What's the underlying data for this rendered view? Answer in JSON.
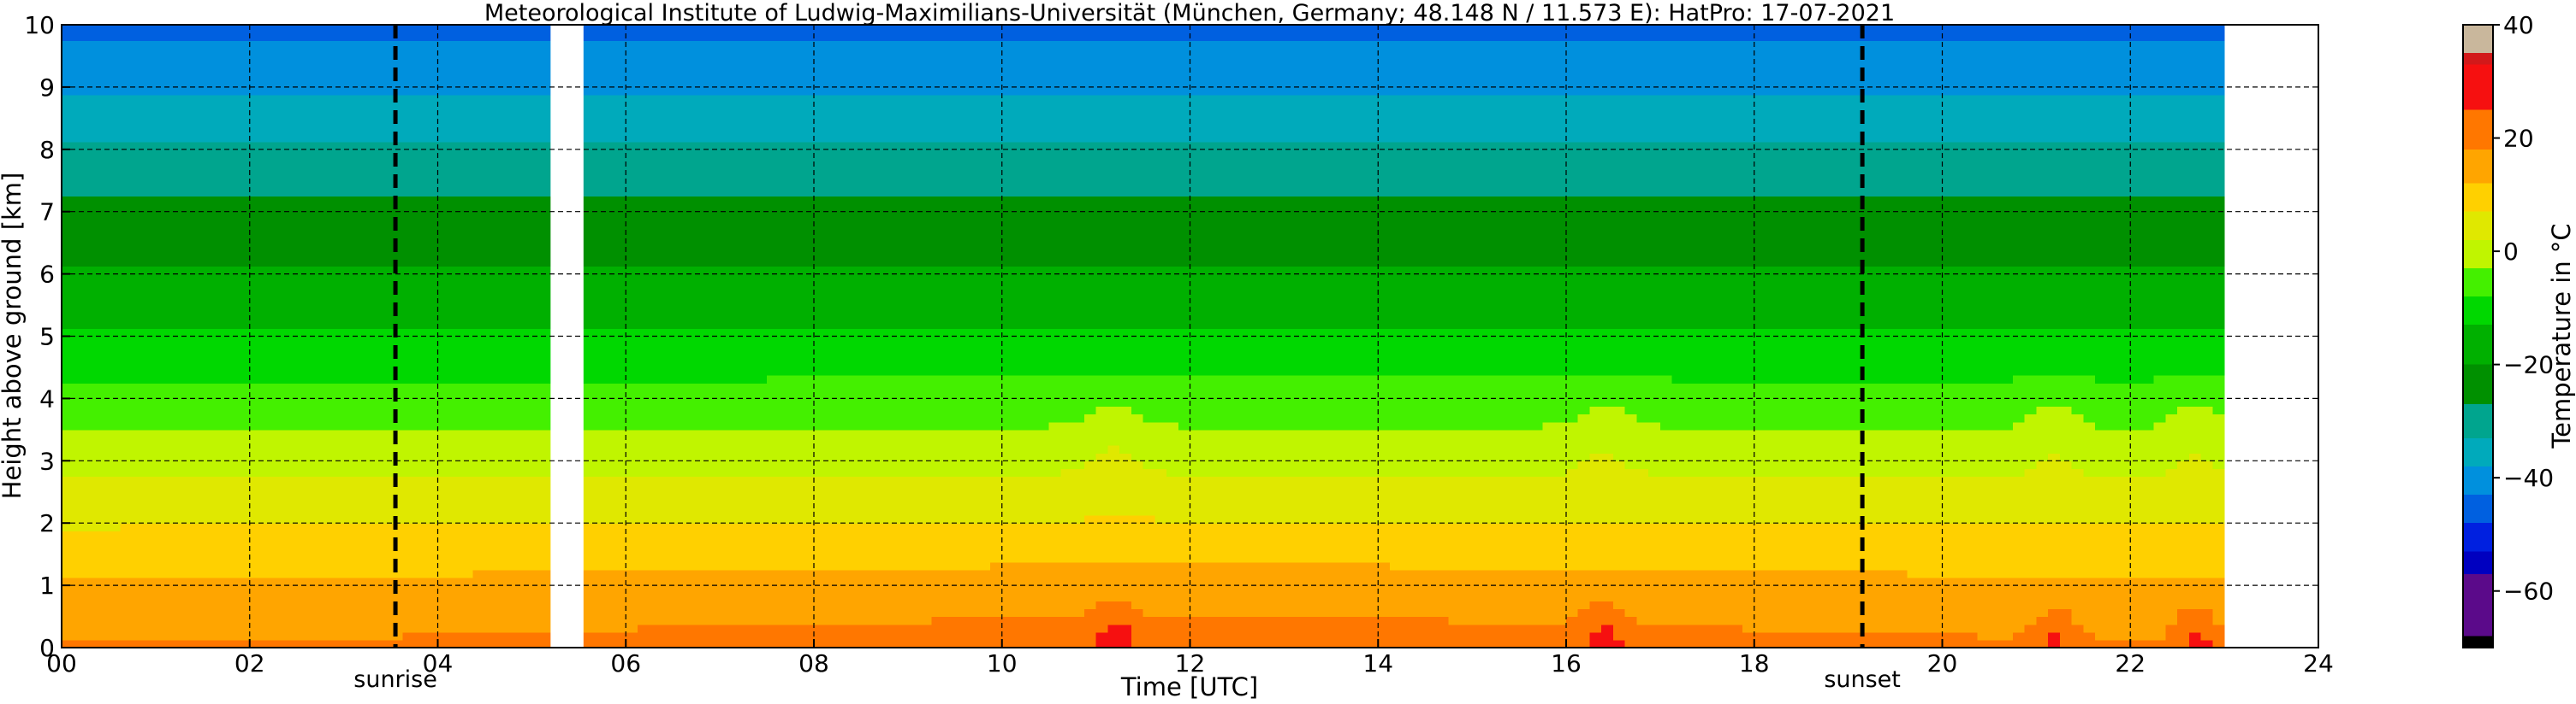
{
  "chart_data": {
    "type": "heatmap",
    "title": "Meteorological Institute of Ludwig-Maximilians-Universität (München, Germany; 48.148 N / 11.573 E):    HatPro: 17-07-2021",
    "xlabel": "Time [UTC]",
    "ylabel": "Height above ground [km]",
    "xlim": [
      0,
      24
    ],
    "ylim": [
      0,
      10
    ],
    "x_ticks": [
      "00",
      "02",
      "04",
      "06",
      "08",
      "10",
      "12",
      "14",
      "16",
      "18",
      "20",
      "22",
      "24"
    ],
    "y_ticks": [
      "0",
      "1",
      "2",
      "3",
      "4",
      "5",
      "6",
      "7",
      "8",
      "9",
      "10"
    ],
    "grid": true,
    "data_extent_hours": [
      0,
      23.0
    ],
    "missing_interval_hours": [
      5.2,
      5.55
    ],
    "surface_temperature_c": 20,
    "lapse_rate_c_per_km": -6.5,
    "warm_events": [
      {
        "time_h": 11.2,
        "peak_c": 30
      },
      {
        "time_h": 16.4,
        "peak_c": 30
      },
      {
        "time_h": 21.2,
        "peak_c": 28
      },
      {
        "time_h": 22.7,
        "peak_c": 30
      }
    ],
    "vertical_markers": [
      {
        "time_h": 3.55,
        "label": "sunrise"
      },
      {
        "time_h": 19.15,
        "label": "sunset"
      }
    ],
    "colorbar": {
      "label": "Temperature in °C",
      "range": [
        -70,
        40
      ],
      "ticks": [
        "40",
        "20",
        "0",
        "−20",
        "−40",
        "−60"
      ],
      "tick_values": [
        40,
        20,
        0,
        -20,
        -40,
        -60
      ],
      "colors": [
        {
          "from": 35,
          "to": 40,
          "color": "#c9b79c"
        },
        {
          "from": 33,
          "to": 35,
          "color": "#d2191a"
        },
        {
          "from": 25,
          "to": 33,
          "color": "#f61010"
        },
        {
          "from": 18,
          "to": 25,
          "color": "#ff7700"
        },
        {
          "from": 12,
          "to": 18,
          "color": "#ffa500"
        },
        {
          "from": 7,
          "to": 12,
          "color": "#ffd000"
        },
        {
          "from": 2,
          "to": 7,
          "color": "#e0e800"
        },
        {
          "from": -3,
          "to": 2,
          "color": "#c0f500"
        },
        {
          "from": -8,
          "to": -3,
          "color": "#44f000"
        },
        {
          "from": -13,
          "to": -8,
          "color": "#00d800"
        },
        {
          "from": -20,
          "to": -13,
          "color": "#00b000"
        },
        {
          "from": -27,
          "to": -20,
          "color": "#009000"
        },
        {
          "from": -33,
          "to": -27,
          "color": "#00a58e"
        },
        {
          "from": -38,
          "to": -33,
          "color": "#00aabb"
        },
        {
          "from": -43,
          "to": -38,
          "color": "#0090dd"
        },
        {
          "from": -48,
          "to": -43,
          "color": "#0060e0"
        },
        {
          "from": -53,
          "to": -48,
          "color": "#0020e0"
        },
        {
          "from": -57,
          "to": -53,
          "color": "#0000c0"
        },
        {
          "from": -68,
          "to": -57,
          "color": "#5b0a8a"
        },
        {
          "from": -70,
          "to": -68,
          "color": "#000000"
        }
      ]
    }
  }
}
